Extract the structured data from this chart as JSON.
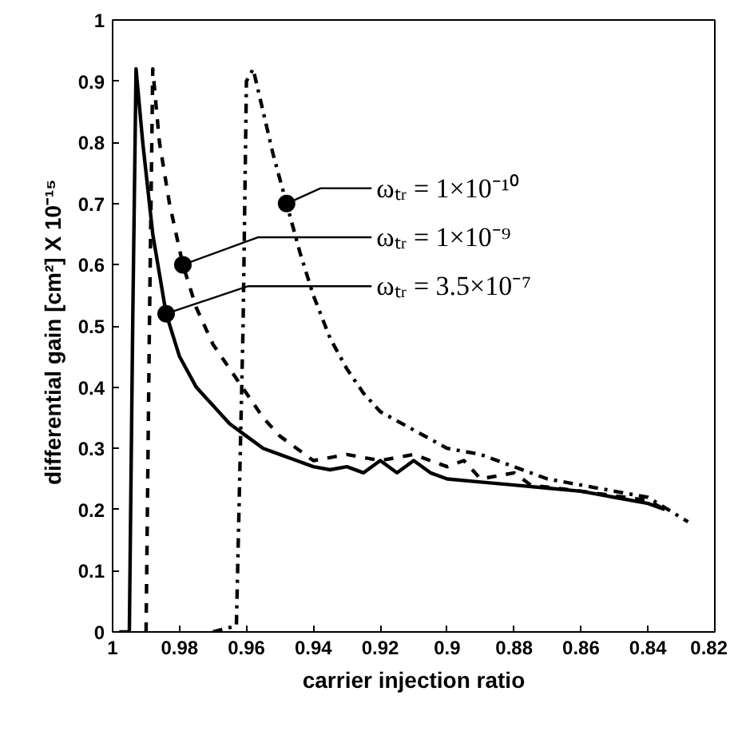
{
  "chart_data": {
    "type": "line",
    "xlabel": "carrier injection ratio",
    "ylabel": "differential gain [cm²]   X 10⁻¹⁵",
    "xlim": [
      1,
      0.82
    ],
    "ylim": [
      0,
      1
    ],
    "xticks": [
      1,
      0.98,
      0.96,
      0.94,
      0.92,
      0.9,
      0.88,
      0.86,
      0.84,
      0.82
    ],
    "yticks": [
      0,
      0.1,
      0.2,
      0.3,
      0.4,
      0.5,
      0.6,
      0.7,
      0.8,
      0.9,
      1
    ],
    "grid": false,
    "marker": "none",
    "series": [
      {
        "color": "#000000",
        "line_style": "solid",
        "x": [
          0.998,
          0.995,
          0.994,
          0.993,
          0.991,
          0.988,
          0.984,
          0.98,
          0.975,
          0.97,
          0.965,
          0.96,
          0.955,
          0.95,
          0.945,
          0.94,
          0.935,
          0.93,
          0.925,
          0.92,
          0.915,
          0.91,
          0.905,
          0.9,
          0.89,
          0.88,
          0.87,
          0.86,
          0.85,
          0.84,
          0.835
        ],
        "values": [
          0,
          0,
          0.5,
          0.92,
          0.8,
          0.65,
          0.52,
          0.45,
          0.4,
          0.37,
          0.34,
          0.32,
          0.3,
          0.29,
          0.28,
          0.27,
          0.265,
          0.27,
          0.26,
          0.28,
          0.26,
          0.28,
          0.26,
          0.25,
          0.245,
          0.24,
          0.235,
          0.23,
          0.22,
          0.21,
          0.2
        ]
      },
      {
        "color": "#000000",
        "line_style": "dashed",
        "x": [
          0.99,
          0.989,
          0.988,
          0.986,
          0.983,
          0.979,
          0.975,
          0.97,
          0.965,
          0.96,
          0.955,
          0.95,
          0.945,
          0.94,
          0.93,
          0.92,
          0.91,
          0.9,
          0.895,
          0.89,
          0.88,
          0.875,
          0.86,
          0.84,
          0.835
        ],
        "values": [
          0,
          0.5,
          0.92,
          0.8,
          0.7,
          0.6,
          0.53,
          0.47,
          0.43,
          0.39,
          0.35,
          0.32,
          0.3,
          0.28,
          0.29,
          0.28,
          0.29,
          0.27,
          0.28,
          0.25,
          0.26,
          0.24,
          0.23,
          0.215,
          0.2
        ]
      },
      {
        "color": "#000000",
        "line_style": "dashdot",
        "x": [
          0.97,
          0.963,
          0.961,
          0.96,
          0.958,
          0.955,
          0.952,
          0.948,
          0.944,
          0.94,
          0.935,
          0.93,
          0.925,
          0.92,
          0.91,
          0.9,
          0.89,
          0.88,
          0.87,
          0.86,
          0.85,
          0.84,
          0.828
        ],
        "values": [
          0,
          0.01,
          0.5,
          0.9,
          0.92,
          0.85,
          0.78,
          0.7,
          0.62,
          0.55,
          0.48,
          0.43,
          0.39,
          0.36,
          0.33,
          0.3,
          0.29,
          0.27,
          0.25,
          0.24,
          0.23,
          0.22,
          0.18
        ]
      }
    ],
    "annotations": [
      {
        "text": "ωₜᵣ = 1×10⁻¹⁰",
        "x": 0.948,
        "y": 0.7
      },
      {
        "text": "ωₜᵣ = 1×10⁻⁹",
        "x": 0.979,
        "y": 0.6
      },
      {
        "text": "ωₜᵣ = 3.5×10⁻⁷",
        "x": 0.984,
        "y": 0.52
      }
    ]
  }
}
